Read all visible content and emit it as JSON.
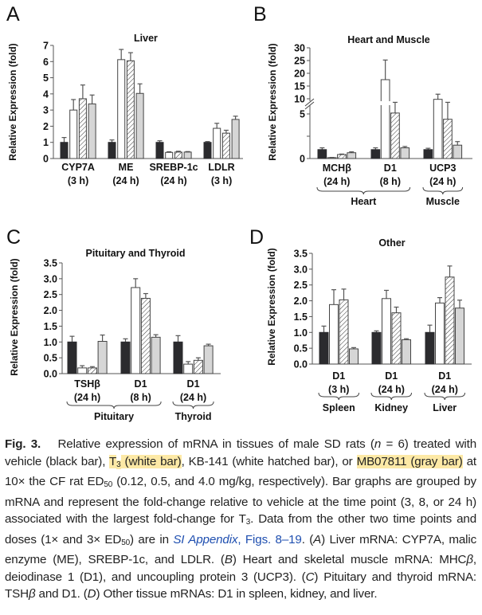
{
  "legend": {
    "vehicle": "black bar",
    "T3": "white bar",
    "KB-141": "white hatched bar",
    "MB07811": "gray bar"
  },
  "colors": {
    "vehicle": "#2b2b2e",
    "T3": "#ffffff",
    "KB141": "#ffffff",
    "MB07811": "#d6d6d6",
    "highlight": "#fde9a6",
    "link": "#1f4fb0"
  },
  "chart_data": [
    {
      "panel": "A",
      "type": "bar",
      "title": "Liver",
      "ylabel": "Relative Expression (fold)",
      "ylim": [
        0,
        7
      ],
      "yticks": [
        "0",
        "1",
        "2",
        "3",
        "4",
        "5",
        "6",
        "7"
      ],
      "categories": [
        [
          "CYP7A",
          "(3 h)"
        ],
        [
          "ME",
          "(24 h)"
        ],
        [
          "SREBP-1c",
          "(24 h)"
        ],
        [
          "LDLR",
          "(3 h)"
        ]
      ],
      "series": [
        {
          "key": "vehicle",
          "values": [
            1.0,
            1.0,
            1.0,
            1.0
          ],
          "err": [
            1.3,
            1.15,
            1.1,
            1.05
          ]
        },
        {
          "key": "T3",
          "values": [
            3.0,
            6.12,
            0.38,
            1.87
          ],
          "err": [
            3.65,
            6.75,
            0.42,
            2.18
          ]
        },
        {
          "key": "KB141",
          "values": [
            3.7,
            6.05,
            0.4,
            1.57
          ],
          "err": [
            4.55,
            6.55,
            0.45,
            1.75
          ]
        },
        {
          "key": "MB07811",
          "values": [
            3.38,
            4.03,
            0.4,
            2.42
          ],
          "err": [
            3.93,
            4.62,
            0.43,
            2.62
          ]
        }
      ],
      "groups": []
    },
    {
      "panel": "B",
      "type": "bar",
      "title": "Heart and Muscle",
      "ylabel": "Relative Expression (fold)",
      "ylim": [
        0,
        30
      ],
      "axis_break": [
        5,
        10
      ],
      "yticks": [
        "0",
        "5",
        "10",
        "15",
        "20",
        "25",
        "30"
      ],
      "categories": [
        [
          "MCHβ",
          "(24 h)"
        ],
        [
          "D1",
          "(8 h)"
        ],
        [
          "UCP3",
          "(24 h)"
        ]
      ],
      "series": [
        {
          "key": "vehicle",
          "values": [
            1.0,
            1.0,
            1.0
          ],
          "err": [
            1.2,
            1.2,
            1.15
          ]
        },
        {
          "key": "T3",
          "values": [
            0.1,
            17.5,
            9.3
          ],
          "err": [
            0.12,
            25.2,
            11.8
          ]
        },
        {
          "key": "KB141",
          "values": [
            0.45,
            5.1,
            4.4
          ],
          "err": [
            0.5,
            6.3,
            6.3
          ]
        },
        {
          "key": "MB07811",
          "values": [
            0.65,
            1.2,
            1.5
          ],
          "err": [
            0.75,
            1.35,
            1.9
          ]
        }
      ],
      "groups": [
        {
          "label": "Heart",
          "from": 0,
          "to": 1
        },
        {
          "label": "Muscle",
          "from": 2,
          "to": 2
        }
      ]
    },
    {
      "panel": "C",
      "type": "bar",
      "title": "Pituitary and Thyroid",
      "ylabel": "Relative Expression (fold)",
      "ylim": [
        0,
        3.5
      ],
      "yticks": [
        "0.0",
        "0.5",
        "1.0",
        "1.5",
        "2.0",
        "2.5",
        "3.0",
        "3.5"
      ],
      "categories": [
        [
          "TSHβ",
          "(24 h)"
        ],
        [
          "D1",
          "(8 h)"
        ],
        [
          "D1",
          "(24 h)"
        ]
      ],
      "series": [
        {
          "key": "vehicle",
          "values": [
            1.0,
            1.0,
            1.0
          ],
          "err": [
            1.18,
            1.1,
            1.2
          ]
        },
        {
          "key": "T3",
          "values": [
            0.18,
            2.72,
            0.3
          ],
          "err": [
            0.25,
            3.0,
            0.38
          ]
        },
        {
          "key": "KB141",
          "values": [
            0.18,
            2.38,
            0.42
          ],
          "err": [
            0.22,
            2.53,
            0.5
          ]
        },
        {
          "key": "MB07811",
          "values": [
            1.02,
            1.15,
            0.88
          ],
          "err": [
            1.22,
            1.23,
            0.93
          ]
        }
      ],
      "groups": [
        {
          "label": "Pituitary",
          "from": 0,
          "to": 1
        },
        {
          "label": "Thyroid",
          "from": 2,
          "to": 2
        }
      ]
    },
    {
      "panel": "D",
      "type": "bar",
      "title": "Other",
      "ylabel": "Relative Expression (fold)",
      "ylim": [
        0,
        3.5
      ],
      "yticks": [
        "0.0",
        "0.5",
        "1.0",
        "1.5",
        "2.0",
        "2.5",
        "3.0",
        "3.5"
      ],
      "categories": [
        [
          "D1",
          "(3 h)"
        ],
        [
          "D1",
          "(24 h)"
        ],
        [
          "D1",
          "(24 h)"
        ]
      ],
      "series": [
        {
          "key": "vehicle",
          "values": [
            1.0,
            1.0,
            1.0
          ],
          "err": [
            1.2,
            1.05,
            1.23
          ]
        },
        {
          "key": "T3",
          "values": [
            1.88,
            2.07,
            1.93
          ],
          "err": [
            2.35,
            2.33,
            2.1
          ]
        },
        {
          "key": "KB141",
          "values": [
            2.03,
            1.62,
            2.75
          ],
          "err": [
            2.37,
            1.8,
            3.1
          ]
        },
        {
          "key": "MB07811",
          "values": [
            0.48,
            0.77,
            1.77
          ],
          "err": [
            0.52,
            0.8,
            2.02
          ]
        }
      ],
      "groups": [
        {
          "label": "Spleen",
          "from": 0,
          "to": 0
        },
        {
          "label": "Kidney",
          "from": 1,
          "to": 1
        },
        {
          "label": "Liver",
          "from": 2,
          "to": 2
        }
      ]
    }
  ],
  "caption": [
    {
      "s": "bold",
      "t": "Fig. 3."
    },
    {
      "s": "",
      "t": "  Relative expression of mRNA in tissues of male SD rats ("
    },
    {
      "s": "it",
      "t": "n"
    },
    {
      "s": "",
      "t": " = 6) treated with vehicle (black bar), "
    },
    {
      "s": "hl",
      "t": "T"
    },
    {
      "s": "hl sub",
      "t": "3"
    },
    {
      "s": "hl",
      "t": " (white bar)"
    },
    {
      "s": "",
      "t": ", KB-141 (white hatched bar), or "
    },
    {
      "s": "hl",
      "t": "MB07811 (gray bar)"
    },
    {
      "s": "",
      "t": " at 10× the CF rat ED"
    },
    {
      "s": "sub",
      "t": "50"
    },
    {
      "s": "",
      "t": " (0.12, 0.5, and 4.0 mg/kg, respectively). Bar graphs are grouped by mRNA and represent the fold-change relative to vehicle at the time point (3, 8, or 24 h) associated with the largest fold-change for T"
    },
    {
      "s": "sub",
      "t": "3"
    },
    {
      "s": "",
      "t": ". Data from the other two time points and doses (1× and 3× ED"
    },
    {
      "s": "sub",
      "t": "50"
    },
    {
      "s": "",
      "t": ") are in "
    },
    {
      "s": "link it",
      "t": "SI Appendix"
    },
    {
      "s": "link",
      "t": ", Figs. 8–19"
    },
    {
      "s": "",
      "t": ". ("
    },
    {
      "s": "it",
      "t": "A"
    },
    {
      "s": "",
      "t": ") Liver mRNA: CYP7A, malic enzyme (ME), SREBP-1c, and LDLR. ("
    },
    {
      "s": "it",
      "t": "B"
    },
    {
      "s": "",
      "t": ") Heart and skeletal muscle mRNA: MHC"
    },
    {
      "s": "it",
      "t": "β"
    },
    {
      "s": "",
      "t": ", deiodinase 1 (D1), and uncoupling protein 3 (UCP3). ("
    },
    {
      "s": "it",
      "t": "C"
    },
    {
      "s": "",
      "t": ") Pituitary and thyroid mRNA: TSH"
    },
    {
      "s": "it",
      "t": "β"
    },
    {
      "s": "",
      "t": " and D1. ("
    },
    {
      "s": "it",
      "t": "D"
    },
    {
      "s": "",
      "t": ") Other tissue mRNAs: D1 in spleen, kidney, and liver."
    }
  ]
}
